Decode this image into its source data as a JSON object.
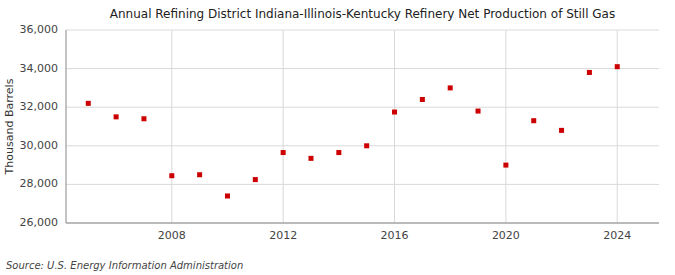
{
  "chart_data": {
    "type": "scatter",
    "title": "Annual Refining District Indiana-Illinois-Kentucky Refinery Net Production of Still Gas",
    "ylabel": "Thousand Barrels",
    "source": "Source: U.S. Energy Information Administration",
    "x": [
      2005,
      2006,
      2007,
      2008,
      2009,
      2010,
      2011,
      2012,
      2013,
      2014,
      2015,
      2016,
      2017,
      2018,
      2019,
      2020,
      2021,
      2022,
      2023,
      2024
    ],
    "values": [
      32200,
      31500,
      31400,
      28450,
      28500,
      27400,
      28250,
      29650,
      29350,
      29650,
      30000,
      31750,
      32400,
      33000,
      31800,
      29000,
      31300,
      30800,
      33800,
      34100
    ],
    "color": "#cc0000",
    "marker": "square",
    "grid": true,
    "xlim": [
      2004.2,
      2025.5
    ],
    "xticks": [
      2008,
      2012,
      2016,
      2020,
      2024
    ],
    "ylim": [
      26000,
      36000
    ],
    "yticks": [
      {
        "value": 26000,
        "label": "26,000"
      },
      {
        "value": 28000,
        "label": "28,000"
      },
      {
        "value": 30000,
        "label": "30,000"
      },
      {
        "value": 32000,
        "label": "32,000"
      },
      {
        "value": 34000,
        "label": "34,000"
      },
      {
        "value": 36000,
        "label": "36,000"
      }
    ]
  }
}
